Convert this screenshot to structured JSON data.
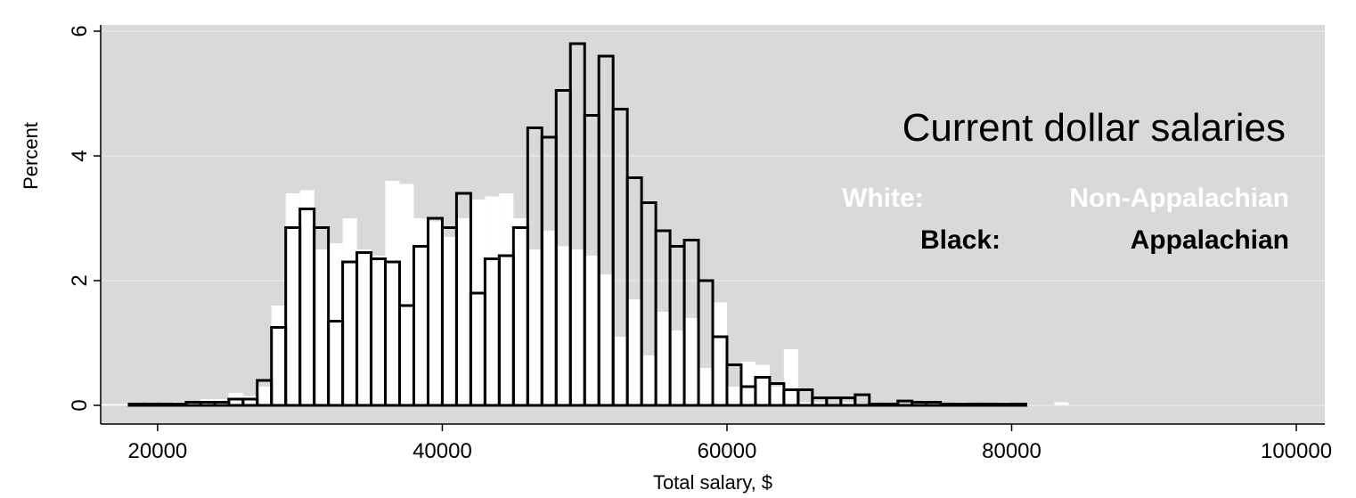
{
  "chart_data": {
    "type": "bar",
    "subtype": "overlaid-histogram",
    "xlabel": "Total salary, $",
    "ylabel": "Percent",
    "xlim": [
      16000,
      102000
    ],
    "ylim": [
      -0.3,
      6.1
    ],
    "x_ticks": [
      20000,
      40000,
      60000,
      80000,
      100000
    ],
    "x_tick_labels": [
      "20000",
      "40000",
      "60000",
      "80000",
      "100000"
    ],
    "y_ticks": [
      0,
      2,
      4,
      6
    ],
    "y_tick_labels": [
      "0",
      "2",
      "4",
      "6"
    ],
    "grid": true,
    "bin_width": 1000,
    "annotation": "Current dollar salaries",
    "legend": {
      "placement": "right",
      "white_label": "White:",
      "white_name": "Non-Appalachian",
      "black_label": "Black:",
      "black_name": "Appalachian"
    },
    "colors": {
      "plot_background": "#d9d9d9",
      "grid": "#efefef",
      "white_series_fill": "#ffffff",
      "black_series_stroke": "#000000"
    },
    "series": [
      {
        "name": "Non-Appalachian",
        "style": "white filled bars",
        "bins": [
          [
            16500,
            0.02
          ],
          [
            17500,
            0.02
          ],
          [
            18500,
            0.02
          ],
          [
            19500,
            0.02
          ],
          [
            20500,
            0.02
          ],
          [
            21500,
            0.05
          ],
          [
            22500,
            0.05
          ],
          [
            23500,
            0.1
          ],
          [
            24500,
            0.1
          ],
          [
            25500,
            0.2
          ],
          [
            26500,
            0.15
          ],
          [
            27500,
            0.3
          ],
          [
            28500,
            1.6
          ],
          [
            29500,
            3.4
          ],
          [
            30500,
            3.45
          ],
          [
            31500,
            2.5
          ],
          [
            32500,
            2.6
          ],
          [
            33500,
            3.0
          ],
          [
            34500,
            2.5
          ],
          [
            35500,
            2.4
          ],
          [
            36500,
            3.6
          ],
          [
            37500,
            3.55
          ],
          [
            38500,
            3.0
          ],
          [
            39500,
            2.95
          ],
          [
            40500,
            2.7
          ],
          [
            41500,
            3.0
          ],
          [
            42500,
            3.3
          ],
          [
            43500,
            3.35
          ],
          [
            44500,
            3.4
          ],
          [
            45500,
            3.0
          ],
          [
            46500,
            2.5
          ],
          [
            47500,
            2.8
          ],
          [
            48500,
            2.55
          ],
          [
            49500,
            2.5
          ],
          [
            50500,
            2.4
          ],
          [
            51500,
            2.1
          ],
          [
            52500,
            1.1
          ],
          [
            53500,
            1.7
          ],
          [
            54500,
            0.8
          ],
          [
            55500,
            1.5
          ],
          [
            56500,
            1.2
          ],
          [
            57500,
            1.4
          ],
          [
            58500,
            0.6
          ],
          [
            59500,
            1.65
          ],
          [
            60500,
            0.3
          ],
          [
            61500,
            0.7
          ],
          [
            62500,
            0.65
          ],
          [
            63500,
            0.3
          ],
          [
            64500,
            0.9
          ],
          [
            65500,
            0.05
          ],
          [
            66500,
            0.05
          ],
          [
            67500,
            0.02
          ],
          [
            68500,
            0.05
          ],
          [
            69500,
            0.02
          ],
          [
            70500,
            0.02
          ],
          [
            71500,
            0.02
          ],
          [
            72500,
            0.02
          ],
          [
            73500,
            0.02
          ],
          [
            74500,
            0.02
          ],
          [
            75500,
            0.02
          ],
          [
            76500,
            0.05
          ],
          [
            77500,
            0.02
          ],
          [
            78500,
            0.02
          ],
          [
            79500,
            0.05
          ],
          [
            83500,
            0.05
          ]
        ]
      },
      {
        "name": "Appalachian",
        "style": "black outlined bars",
        "bins": [
          [
            18500,
            0.02
          ],
          [
            19500,
            0.02
          ],
          [
            20500,
            0.02
          ],
          [
            21500,
            0.02
          ],
          [
            22500,
            0.05
          ],
          [
            23500,
            0.05
          ],
          [
            24500,
            0.05
          ],
          [
            25500,
            0.1
          ],
          [
            26500,
            0.1
          ],
          [
            27500,
            0.4
          ],
          [
            28500,
            1.25
          ],
          [
            29500,
            2.85
          ],
          [
            30500,
            3.15
          ],
          [
            31500,
            2.85
          ],
          [
            32500,
            1.35
          ],
          [
            33500,
            2.3
          ],
          [
            34500,
            2.45
          ],
          [
            35500,
            2.35
          ],
          [
            36500,
            2.3
          ],
          [
            37500,
            1.6
          ],
          [
            38500,
            2.55
          ],
          [
            39500,
            3.0
          ],
          [
            40500,
            2.85
          ],
          [
            41500,
            3.4
          ],
          [
            42500,
            1.8
          ],
          [
            43500,
            2.35
          ],
          [
            44500,
            2.4
          ],
          [
            45500,
            2.85
          ],
          [
            46500,
            4.45
          ],
          [
            47500,
            4.3
          ],
          [
            48500,
            5.05
          ],
          [
            49500,
            5.8
          ],
          [
            50500,
            4.65
          ],
          [
            51500,
            5.6
          ],
          [
            52500,
            4.75
          ],
          [
            53500,
            3.65
          ],
          [
            54500,
            3.25
          ],
          [
            55500,
            2.8
          ],
          [
            56500,
            2.55
          ],
          [
            57500,
            2.65
          ],
          [
            58500,
            2.0
          ],
          [
            59500,
            1.1
          ],
          [
            60500,
            0.65
          ],
          [
            61500,
            0.3
          ],
          [
            62500,
            0.45
          ],
          [
            63500,
            0.35
          ],
          [
            64500,
            0.25
          ],
          [
            65500,
            0.25
          ],
          [
            66500,
            0.12
          ],
          [
            67500,
            0.12
          ],
          [
            68500,
            0.12
          ],
          [
            69500,
            0.17
          ],
          [
            70500,
            0.02
          ],
          [
            71500,
            0.02
          ],
          [
            72500,
            0.07
          ],
          [
            73500,
            0.05
          ],
          [
            74500,
            0.05
          ],
          [
            75500,
            0.02
          ],
          [
            76500,
            0.02
          ],
          [
            77500,
            0.02
          ],
          [
            78500,
            0.02
          ],
          [
            79500,
            0.02
          ],
          [
            80500,
            0.02
          ]
        ]
      }
    ]
  }
}
